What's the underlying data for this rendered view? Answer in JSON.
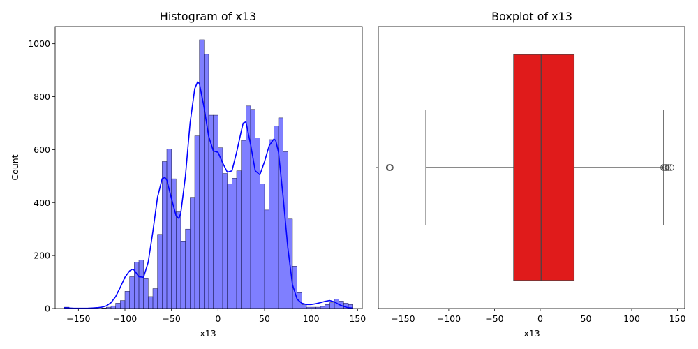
{
  "chart_data": [
    {
      "type": "bar",
      "subtype": "histogram",
      "title": "Histogram of x13",
      "xlabel": "x13",
      "ylabel": "Count",
      "xlim": [
        -175,
        155
      ],
      "ylim": [
        0,
        1065
      ],
      "xticks": [
        -150,
        -100,
        -50,
        0,
        50,
        100,
        150
      ],
      "yticks": [
        0,
        200,
        400,
        600,
        800,
        1000
      ],
      "grid": false,
      "bar_color": "#0000ff",
      "bar_alpha": 0.5,
      "bin_edges_start": -165,
      "bin_width": 5,
      "counts": [
        5,
        2,
        0,
        0,
        0,
        0,
        0,
        0,
        2,
        5,
        10,
        20,
        30,
        65,
        120,
        175,
        183,
        115,
        45,
        75,
        280,
        555,
        602,
        490,
        365,
        255,
        300,
        420,
        652,
        1015,
        960,
        730,
        730,
        607,
        510,
        470,
        492,
        520,
        635,
        765,
        752,
        645,
        470,
        372,
        638,
        690,
        720,
        592,
        338,
        160,
        60,
        15,
        5,
        5,
        5,
        8,
        15,
        22,
        35,
        28,
        20,
        15
      ],
      "kde_color": "#0000ff",
      "kde": {
        "x": [
          -165,
          -160,
          -155,
          -150,
          -145,
          -140,
          -135,
          -130,
          -125,
          -120,
          -115,
          -110,
          -105,
          -100,
          -95,
          -92,
          -90,
          -85,
          -80,
          -75,
          -70,
          -65,
          -60,
          -57,
          -55,
          -50,
          -45,
          -42,
          -40,
          -35,
          -30,
          -25,
          -22,
          -20,
          -15,
          -10,
          -5,
          0,
          5,
          10,
          15,
          20,
          25,
          27,
          30,
          35,
          40,
          45,
          50,
          55,
          60,
          62,
          65,
          70,
          75,
          80,
          85,
          90,
          95,
          100,
          105,
          110,
          115,
          120,
          125,
          130,
          135,
          140,
          145
        ],
        "y": [
          3,
          2,
          1,
          1,
          1,
          1,
          2,
          3,
          5,
          10,
          22,
          45,
          80,
          118,
          142,
          148,
          145,
          120,
          118,
          175,
          290,
          420,
          490,
          495,
          485,
          415,
          350,
          340,
          360,
          500,
          700,
          830,
          855,
          850,
          760,
          650,
          595,
          590,
          550,
          515,
          520,
          590,
          670,
          700,
          705,
          620,
          520,
          505,
          555,
          615,
          640,
          635,
          590,
          420,
          230,
          90,
          35,
          20,
          15,
          15,
          18,
          22,
          27,
          30,
          25,
          15,
          8,
          3,
          2
        ]
      }
    },
    {
      "type": "boxplot",
      "title": "Boxplot of x13",
      "xlabel": "x13",
      "xlim": [
        -177,
        158
      ],
      "xticks": [
        -150,
        -100,
        -50,
        0,
        50,
        100,
        150
      ],
      "orientation": "horizontal",
      "box_color": "#e01b1b",
      "line_color": "#444444",
      "q1": -29,
      "median": 1,
      "q3": 37,
      "whisker_low": -125,
      "whisker_high": 135,
      "outliers": [
        -165,
        -165,
        -164,
        135,
        137,
        138,
        140,
        143
      ]
    }
  ]
}
